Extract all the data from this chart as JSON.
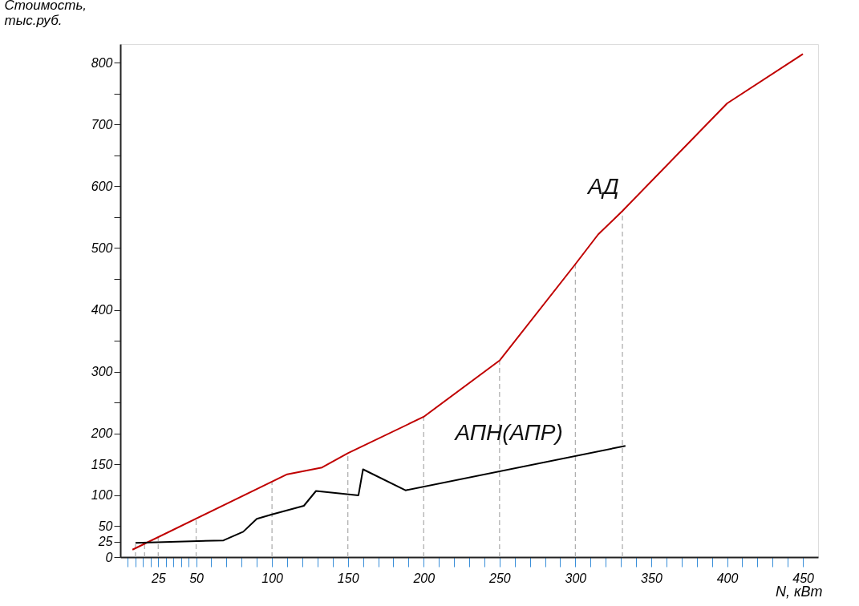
{
  "chart_data": {
    "type": "line",
    "xlabel": "N, кВт",
    "ylabel": "Стоимость, тыс.руб.",
    "xlim": [
      0,
      460
    ],
    "ylim": [
      0,
      830
    ],
    "xticks": [
      {
        "value": 5,
        "label": null
      },
      {
        "value": 10,
        "label": null
      },
      {
        "value": 15,
        "label": null
      },
      {
        "value": 20,
        "label": null
      },
      25,
      {
        "value": 30,
        "label": null
      },
      {
        "value": 35,
        "label": null
      },
      {
        "value": 40,
        "label": null
      },
      {
        "value": 45,
        "label": null
      },
      50,
      {
        "value": 60,
        "label": null
      },
      {
        "value": 70,
        "label": null
      },
      {
        "value": 80,
        "label": null
      },
      {
        "value": 90,
        "label": null
      },
      100,
      {
        "value": 110,
        "label": null
      },
      {
        "value": 120,
        "label": null
      },
      {
        "value": 130,
        "label": null
      },
      {
        "value": 140,
        "label": null
      },
      150,
      {
        "value": 160,
        "label": null
      },
      {
        "value": 170,
        "label": null
      },
      {
        "value": 180,
        "label": null
      },
      {
        "value": 190,
        "label": null
      },
      200,
      {
        "value": 210,
        "label": null
      },
      {
        "value": 220,
        "label": null
      },
      {
        "value": 230,
        "label": null
      },
      {
        "value": 240,
        "label": null
      },
      250,
      {
        "value": 260,
        "label": null
      },
      {
        "value": 270,
        "label": null
      },
      {
        "value": 280,
        "label": null
      },
      {
        "value": 290,
        "label": null
      },
      300,
      {
        "value": 310,
        "label": null
      },
      {
        "value": 320,
        "label": null
      },
      {
        "value": 330,
        "label": null
      },
      {
        "value": 340,
        "label": null
      },
      350,
      {
        "value": 360,
        "label": null
      },
      {
        "value": 370,
        "label": null
      },
      {
        "value": 380,
        "label": null
      },
      {
        "value": 390,
        "label": null
      },
      400,
      {
        "value": 410,
        "label": null
      },
      {
        "value": 420,
        "label": null
      },
      {
        "value": 430,
        "label": null
      },
      {
        "value": 440,
        "label": null
      },
      450
    ],
    "yticks": [
      0,
      25,
      50,
      100,
      150,
      200,
      {
        "value": 250,
        "label": null
      },
      300,
      {
        "value": 350,
        "label": null
      },
      400,
      {
        "value": 450,
        "label": null
      },
      500,
      {
        "value": 550,
        "label": null
      },
      600,
      {
        "value": 650,
        "label": null
      },
      700,
      {
        "value": 750,
        "label": null
      },
      800
    ],
    "grid": false,
    "marker": "none",
    "line_style": "solid",
    "series": [
      {
        "color": "#c00000",
        "x": [
          8,
          110,
          133,
          150,
          200,
          250,
          300,
          315,
          331,
          400,
          450
        ],
        "values": [
          12,
          134,
          145,
          168,
          227,
          318,
          474,
          522,
          560,
          734,
          814
        ]
      },
      {
        "color": "#000000",
        "x": [
          10,
          68,
          81,
          90,
          100,
          121,
          129,
          157,
          160,
          188,
          333
        ],
        "values": [
          23,
          27,
          41,
          62,
          69,
          83,
          107,
          100,
          142,
          108,
          180
        ]
      },
      {
        "color": "#b0b0b0",
        "line_style": "dashed",
        "x": [
          10,
          10
        ],
        "values": [
          0,
          23
        ]
      },
      {
        "color": "#b0b0b0",
        "line_style": "dashed",
        "x": [
          16,
          16
        ],
        "values": [
          0,
          22
        ]
      },
      {
        "color": "#b0b0b0",
        "line_style": "dashed",
        "x": [
          25,
          25
        ],
        "values": [
          0,
          32
        ]
      },
      {
        "color": "#b0b0b0",
        "line_style": "dashed",
        "x": [
          50,
          50
        ],
        "values": [
          0,
          62
        ]
      },
      {
        "color": "#b0b0b0",
        "line_style": "dashed",
        "x": [
          100,
          100
        ],
        "values": [
          0,
          122
        ]
      },
      {
        "color": "#b0b0b0",
        "line_style": "dashed",
        "x": [
          150,
          150
        ],
        "values": [
          0,
          168
        ]
      },
      {
        "color": "#b0b0b0",
        "line_style": "dashed",
        "x": [
          200,
          200
        ],
        "values": [
          0,
          227
        ]
      },
      {
        "color": "#b0b0b0",
        "line_style": "dashed",
        "x": [
          250,
          250
        ],
        "values": [
          0,
          318
        ]
      },
      {
        "color": "#b0b0b0",
        "line_style": "dashed",
        "x": [
          300,
          300
        ],
        "values": [
          0,
          474
        ]
      },
      {
        "color": "#b0b0b0",
        "line_style": "dashed",
        "x": [
          331,
          331
        ],
        "values": [
          0,
          560
        ]
      }
    ],
    "annotations": [
      "АД",
      "АПН(АПР)"
    ]
  }
}
